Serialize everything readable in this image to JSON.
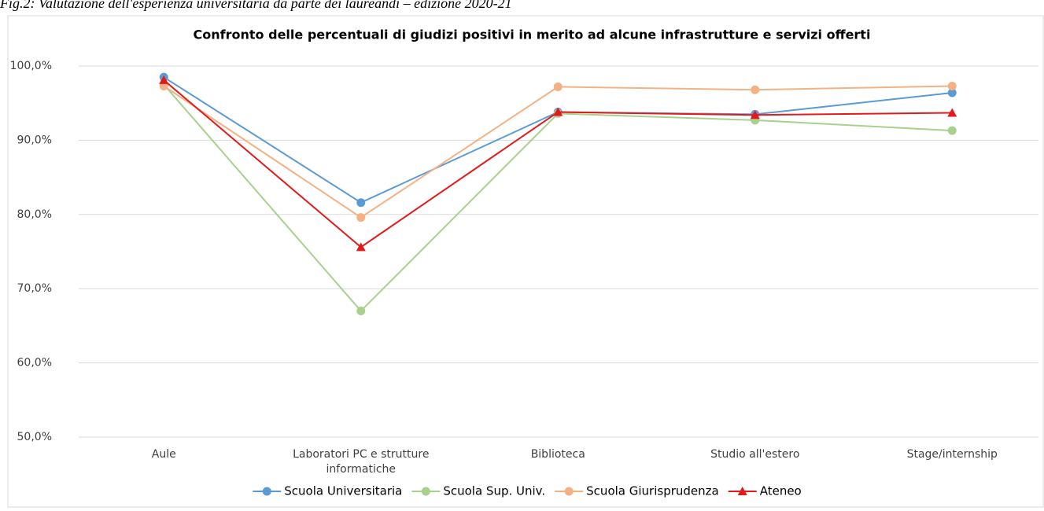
{
  "caption": "Fig.2: Valutazione dell'esperienza universitaria da parte dei laureandi – edizione 2020-21",
  "chart_data": {
    "type": "line",
    "title": "Confronto delle percentuali di giudizi positivi in merito ad alcune infrastrutture e servizi offerti",
    "categories": [
      "Aule",
      "Laboratori PC e strutture informatiche",
      "Biblioteca",
      "Studio all'estero",
      "Stage/internship"
    ],
    "series": [
      {
        "name": "Scuola Universitaria",
        "color": "#5b9bd5",
        "marker": "circle",
        "values": [
          98.5,
          81.6,
          93.8,
          93.5,
          96.4
        ]
      },
      {
        "name": "Scuola Sup. Univ.",
        "color": "#a9d18e",
        "marker": "circle",
        "values": [
          97.5,
          67.0,
          93.6,
          92.7,
          91.3
        ]
      },
      {
        "name": "Scuola Giurisprudenza",
        "color": "#f4b183",
        "marker": "circle",
        "values": [
          97.3,
          79.6,
          97.2,
          96.8,
          97.3
        ]
      },
      {
        "name": "Ateneo",
        "color": "#e31a1c",
        "marker": "triangle",
        "values": [
          98.1,
          75.6,
          93.8,
          93.4,
          93.7
        ]
      }
    ],
    "ylim": [
      50,
      100
    ],
    "yticks": [
      {
        "value": 50,
        "label": "50,0%"
      },
      {
        "value": 60,
        "label": "60,0%"
      },
      {
        "value": 70,
        "label": "70,0%"
      },
      {
        "value": 80,
        "label": "80,0%"
      },
      {
        "value": 90,
        "label": "90,0%"
      },
      {
        "value": 100,
        "label": "100,0%"
      }
    ],
    "grid": true,
    "legend": "bottom"
  }
}
